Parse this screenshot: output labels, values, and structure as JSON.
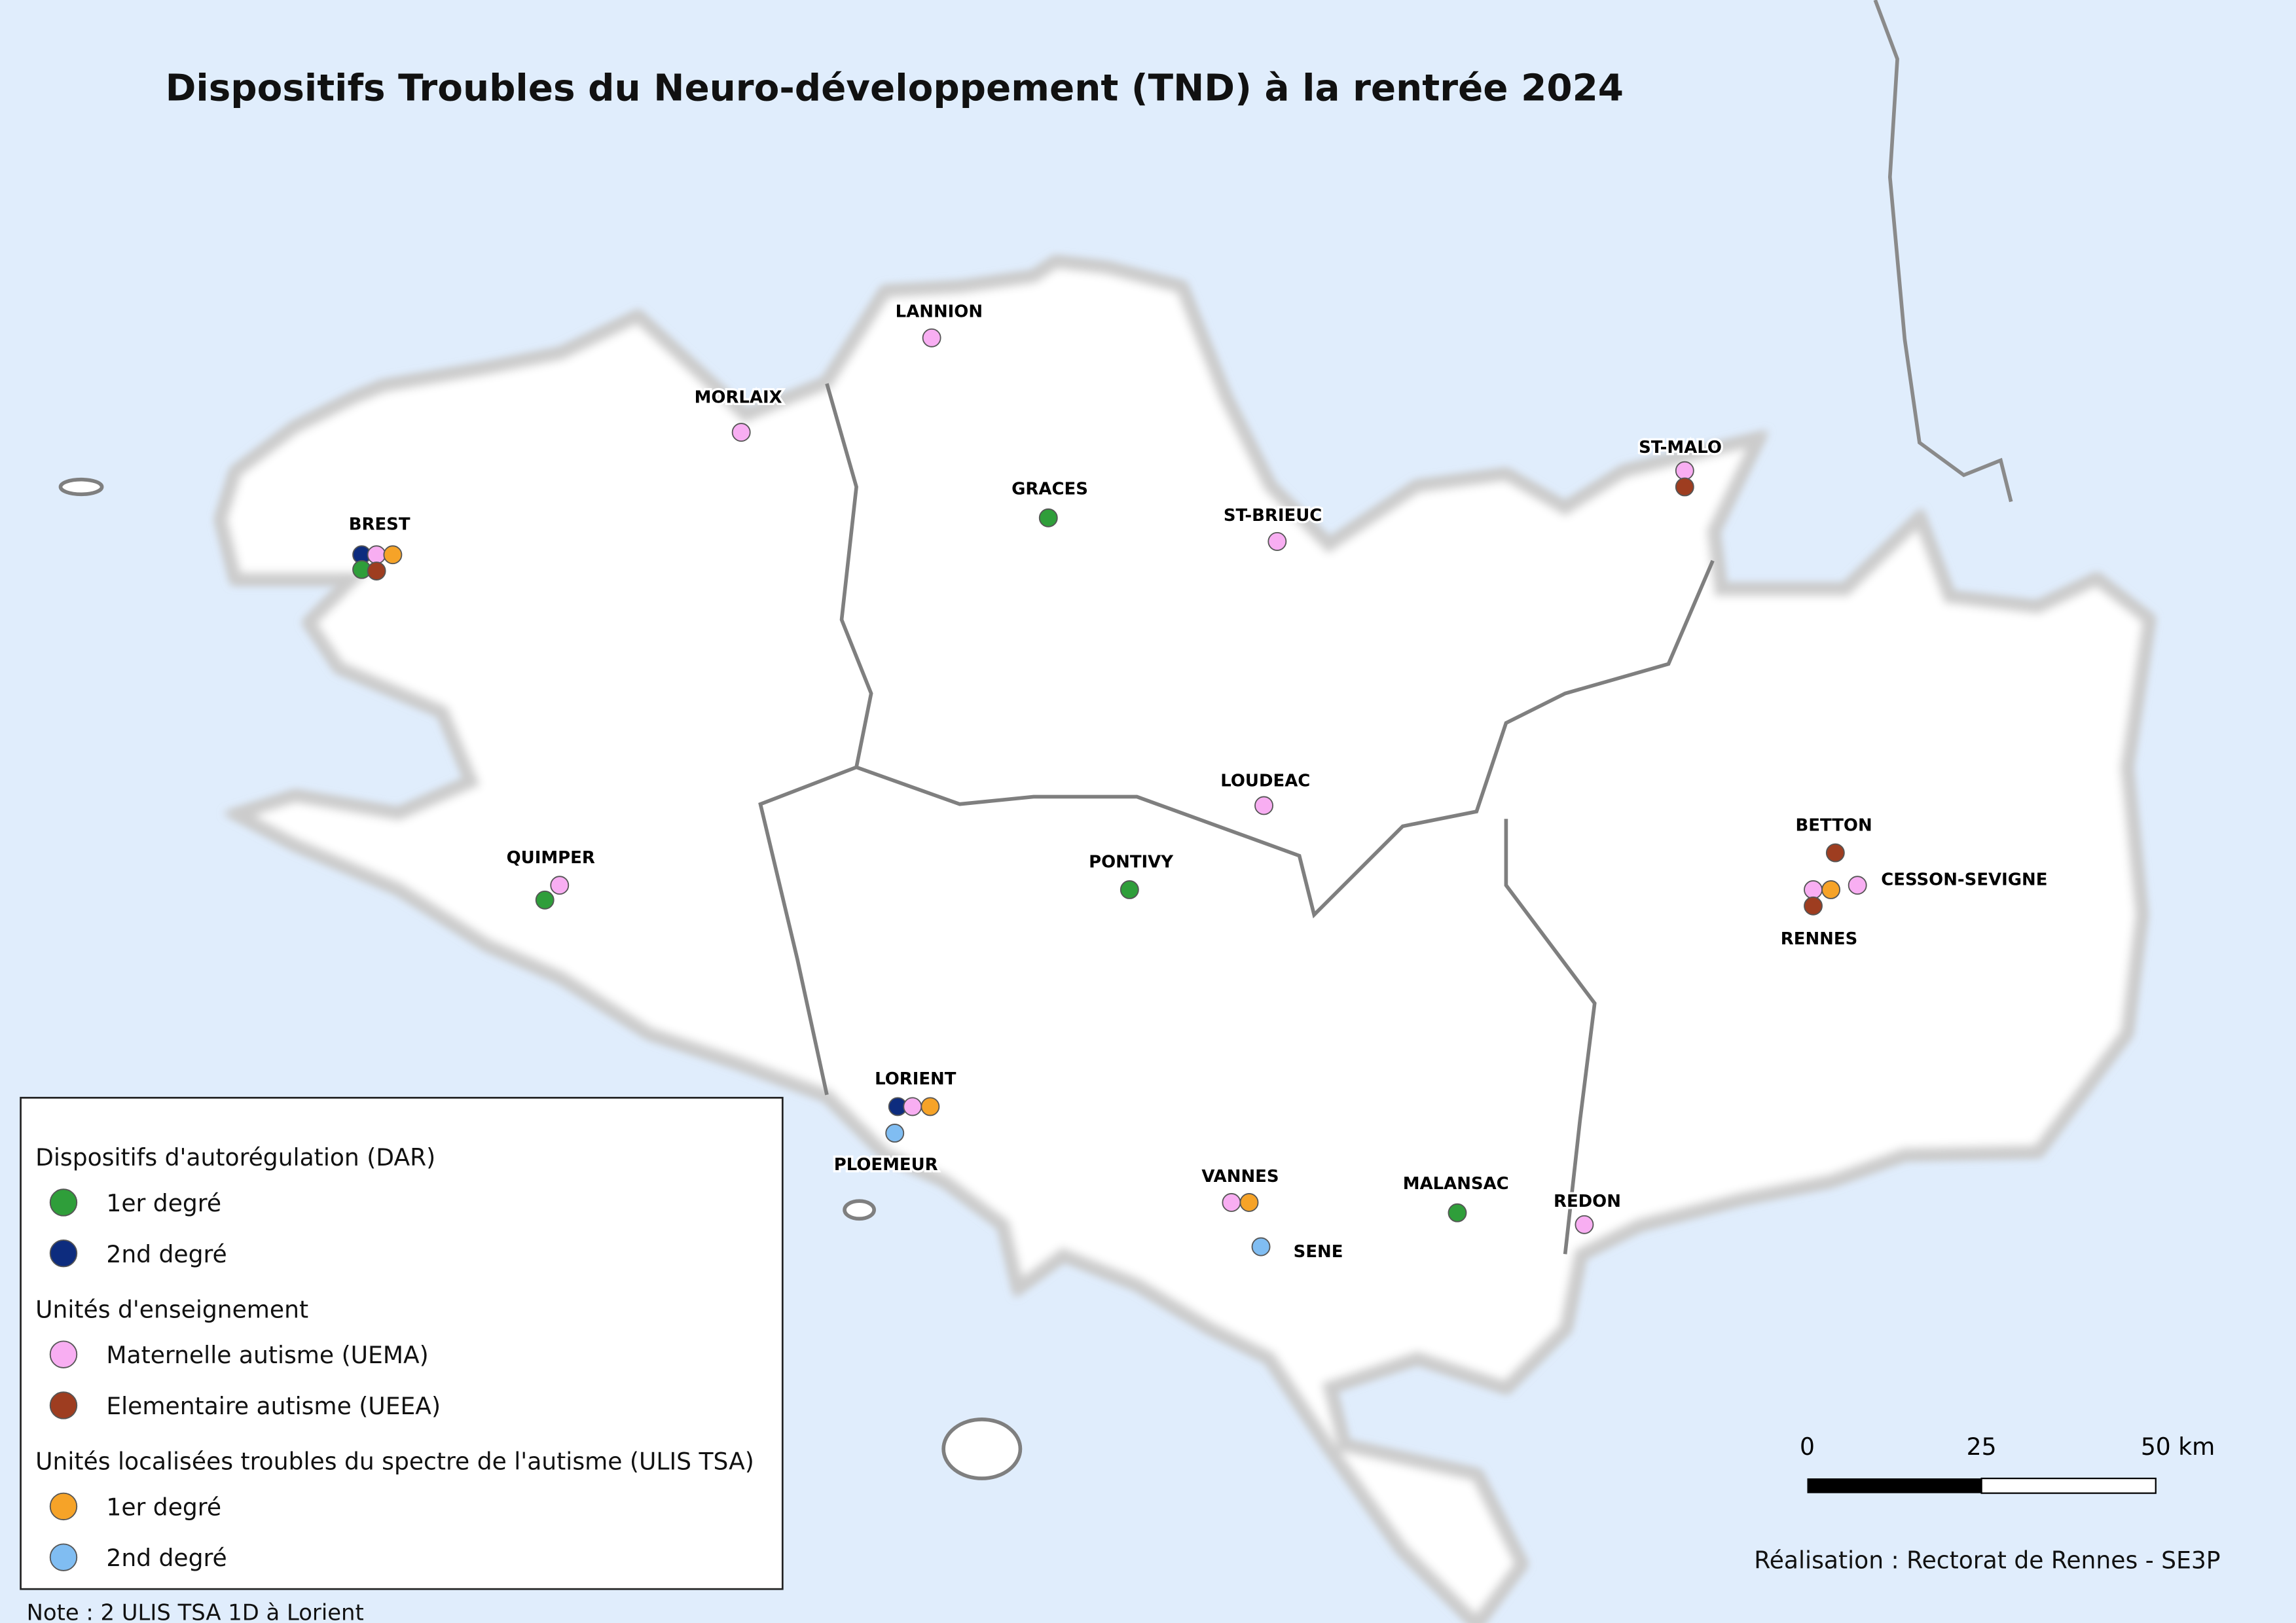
{
  "title": "Dispositifs Troubles du Neuro-développement (TND) à la rentrée 2024",
  "places": [
    {
      "label": "LANNION"
    },
    {
      "label": "MORLAIX"
    },
    {
      "label": "GRACES"
    },
    {
      "label": "ST-BRIEUC"
    },
    {
      "label": "ST-MALO"
    },
    {
      "label": "BREST"
    },
    {
      "label": "LOUDEAC"
    },
    {
      "label": "BETTON"
    },
    {
      "label": "CESSON-SEVIGNE"
    },
    {
      "label": "RENNES"
    },
    {
      "label": "QUIMPER"
    },
    {
      "label": "PONTIVY"
    },
    {
      "label": "LORIENT"
    },
    {
      "label": "PLOEMEUR"
    },
    {
      "label": "VANNES"
    },
    {
      "label": "SENE"
    },
    {
      "label": "MALANSAC"
    },
    {
      "label": "REDON"
    }
  ],
  "legend": {
    "groups": [
      {
        "title": "Dispositifs d'autorégulation (DAR)",
        "items": [
          {
            "label": "1er degré",
            "color": "#2f9e3a"
          },
          {
            "label": "2nd degré",
            "color": "#0d2c7e"
          }
        ]
      },
      {
        "title": "Unités d'enseignement",
        "items": [
          {
            "label": "Maternelle autisme (UEMA)",
            "color": "#f8aef2"
          },
          {
            "label": "Elementaire autisme (UEEA)",
            "color": "#9e3d20"
          }
        ]
      },
      {
        "title": "Unités localisées troubles du spectre de l'autisme (ULIS TSA)",
        "items": [
          {
            "label": "1er degré",
            "color": "#f6a328"
          },
          {
            "label": "2nd degré",
            "color": "#80bdf2"
          }
        ]
      }
    ]
  },
  "scale_bar": {
    "ticks": [
      "0",
      "25",
      "50 km"
    ]
  },
  "credit": "Réalisation : Rectorat de Rennes - SE3P",
  "note": "Note : 2 ULIS TSA 1D à Lorient"
}
